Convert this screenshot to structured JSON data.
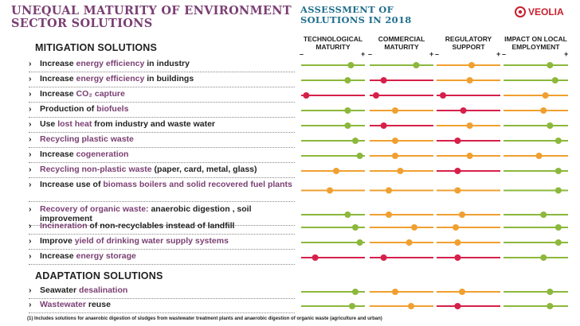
{
  "title": "UNEQUAL MATURITY OF ENVIRONMENT SECTOR SOLUTIONS",
  "assessment_title": "ASSESSMENT OF SOLUTIONS IN 2018",
  "logo_text": "VEOLIA",
  "columns": [
    {
      "label": "TECHNOLOGICAL MATURITY"
    },
    {
      "label": "COMMERCIAL MATURITY"
    },
    {
      "label": "REGULATORY SUPPORT"
    },
    {
      "label": "IMPACT ON LOCAL EMPLOYMENT"
    }
  ],
  "minus": "–",
  "plus": "+",
  "colors": {
    "green": "#8cb83c",
    "orange": "#f0a030",
    "red": "#d6204a"
  },
  "sections": [
    {
      "title": "MITIGATION SOLUTIONS",
      "rows": [
        {
          "parts": [
            [
              "Increase ",
              0
            ],
            [
              "energy efficiency",
              1
            ],
            [
              " in industry",
              0
            ]
          ],
          "ratings": [
            [
              "green",
              0.78
            ],
            [
              "green",
              0.73
            ],
            [
              "orange",
              0.55
            ],
            [
              "green",
              0.72
            ]
          ]
        },
        {
          "parts": [
            [
              "Increase ",
              0
            ],
            [
              "energy efficiency",
              1
            ],
            [
              " in buildings",
              0
            ]
          ],
          "ratings": [
            [
              "green",
              0.73
            ],
            [
              "red",
              0.22
            ],
            [
              "orange",
              0.52
            ],
            [
              "green",
              0.8
            ]
          ]
        },
        {
          "parts": [
            [
              "Increase ",
              0
            ],
            [
              "CO₂ capture",
              1
            ]
          ],
          "ratings": [
            [
              "red",
              0.08
            ],
            [
              "red",
              0.1
            ],
            [
              "red",
              0.1
            ],
            [
              "orange",
              0.65
            ]
          ]
        },
        {
          "parts": [
            [
              "Production of ",
              0
            ],
            [
              "biofuels",
              1
            ]
          ],
          "ratings": [
            [
              "green",
              0.73
            ],
            [
              "orange",
              0.4
            ],
            [
              "red",
              0.42
            ],
            [
              "orange",
              0.62
            ]
          ]
        },
        {
          "parts": [
            [
              "Use ",
              0
            ],
            [
              "lost heat",
              1
            ],
            [
              " from industry and waste water",
              0
            ]
          ],
          "ratings": [
            [
              "green",
              0.73
            ],
            [
              "red",
              0.22
            ],
            [
              "orange",
              0.52
            ],
            [
              "green",
              0.72
            ]
          ]
        },
        {
          "parts": [
            [
              "Recycling plastic waste",
              1
            ]
          ],
          "ratings": [
            [
              "green",
              0.85
            ],
            [
              "orange",
              0.4
            ],
            [
              "red",
              0.33
            ],
            [
              "green",
              0.85
            ]
          ]
        },
        {
          "parts": [
            [
              "Increase ",
              0
            ],
            [
              "cogeneration",
              1
            ]
          ],
          "ratings": [
            [
              "green",
              0.92
            ],
            [
              "orange",
              0.4
            ],
            [
              "orange",
              0.52
            ],
            [
              "orange",
              0.55
            ]
          ]
        },
        {
          "parts": [
            [
              "Recycling non-plastic waste",
              1
            ],
            [
              " (paper, card, metal, glass)",
              0
            ]
          ],
          "ratings": [
            [
              "orange",
              0.55
            ],
            [
              "orange",
              0.48
            ],
            [
              "red",
              0.33
            ],
            [
              "green",
              0.85
            ]
          ]
        },
        {
          "parts": [
            [
              "Increase use of ",
              0
            ],
            [
              "biomass boilers and solid recovered fuel plants",
              1
            ]
          ],
          "ratings": [
            [
              "orange",
              0.45
            ],
            [
              "orange",
              0.3
            ],
            [
              "orange",
              0.33
            ],
            [
              "green",
              0.85
            ]
          ]
        },
        {
          "parts": [
            [
              "Recovery of organic waste:",
              1
            ],
            [
              " anaerobic digestion , soil improvement",
              0
            ]
          ],
          "ratings": [
            [
              "green",
              0.73
            ],
            [
              "orange",
              0.3
            ],
            [
              "orange",
              0.4
            ],
            [
              "green",
              0.62
            ]
          ]
        },
        {
          "parts": [
            [
              "Incineration",
              1
            ],
            [
              " of non-recyclables instead of landfill",
              0
            ]
          ],
          "ratings": [
            [
              "green",
              0.85
            ],
            [
              "orange",
              0.7
            ],
            [
              "orange",
              0.3
            ],
            [
              "green",
              0.85
            ]
          ]
        },
        {
          "parts": [
            [
              "Improve ",
              0
            ],
            [
              "yield of drinking water supply systems",
              1
            ]
          ],
          "ratings": [
            [
              "green",
              0.92
            ],
            [
              "orange",
              0.62
            ],
            [
              "orange",
              0.33
            ],
            [
              "green",
              0.85
            ]
          ]
        },
        {
          "parts": [
            [
              "Increase ",
              0
            ],
            [
              "energy storage",
              1
            ]
          ],
          "ratings": [
            [
              "red",
              0.22
            ],
            [
              "red",
              0.22
            ],
            [
              "red",
              0.33
            ],
            [
              "green",
              0.62
            ]
          ]
        }
      ]
    },
    {
      "title": "ADAPTATION SOLUTIONS",
      "rows": [
        {
          "parts": [
            [
              "Seawater ",
              0
            ],
            [
              "desalination",
              1
            ]
          ],
          "ratings": [
            [
              "green",
              0.85
            ],
            [
              "orange",
              0.4
            ],
            [
              "orange",
              0.4
            ],
            [
              "green",
              0.72
            ]
          ]
        },
        {
          "parts": [
            [
              "Wastewater",
              1
            ],
            [
              " reuse",
              0
            ]
          ],
          "ratings": [
            [
              "green",
              0.8
            ],
            [
              "orange",
              0.65
            ],
            [
              "red",
              0.33
            ],
            [
              "green",
              0.72
            ]
          ]
        }
      ]
    }
  ],
  "footnote": "(1) Includes solutions for anaerobic digestion of sludges from wastewater treatment plants and anaerobic digestion of organic waste (agriculture and urban)"
}
